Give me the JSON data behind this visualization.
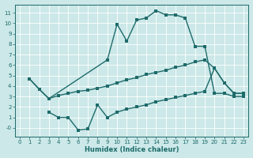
{
  "xlabel": "Humidex (Indice chaleur)",
  "bg_color": "#cce8e8",
  "line_color": "#1e6b6b",
  "grid_color": "#ffffff",
  "xlim": [
    -0.5,
    23.5
  ],
  "ylim": [
    -0.8,
    11.8
  ],
  "xticks": [
    0,
    1,
    2,
    3,
    4,
    5,
    6,
    7,
    8,
    9,
    10,
    11,
    12,
    13,
    14,
    15,
    16,
    17,
    18,
    19,
    20,
    21,
    22,
    23
  ],
  "yticks": [
    0,
    1,
    2,
    3,
    4,
    5,
    6,
    7,
    8,
    9,
    10,
    11
  ],
  "ytick_labels": [
    "-0",
    "1",
    "2",
    "3",
    "4",
    "5",
    "6",
    "7",
    "8",
    "9",
    "10",
    "11"
  ],
  "line1_x": [
    1,
    2,
    3,
    4,
    5,
    6,
    7,
    8,
    9,
    10,
    11,
    12,
    13,
    14,
    15,
    16,
    17,
    18,
    19,
    20,
    21,
    22,
    23
  ],
  "line1_y": [
    4.7,
    3.7,
    2.8,
    3.1,
    3.3,
    3.5,
    3.6,
    3.8,
    4.0,
    4.3,
    4.6,
    4.8,
    5.1,
    5.3,
    5.5,
    5.8,
    6.0,
    6.3,
    6.5,
    5.7,
    4.3,
    3.3,
    3.3
  ],
  "line2_x": [
    1,
    2,
    3,
    9,
    10,
    11,
    12,
    13,
    14,
    15,
    16,
    17,
    18,
    19,
    20,
    21,
    22,
    23
  ],
  "line2_y": [
    4.7,
    3.7,
    2.8,
    6.5,
    9.9,
    8.3,
    10.3,
    10.5,
    11.2,
    10.8,
    10.8,
    10.5,
    7.8,
    7.8,
    3.3,
    3.3,
    3.0,
    3.0
  ],
  "line3_x": [
    3,
    4,
    5,
    6,
    7,
    8,
    9,
    10,
    11,
    12,
    13,
    14,
    15,
    16,
    17,
    18,
    19,
    20,
    21,
    22,
    23
  ],
  "line3_y": [
    1.5,
    1.0,
    1.0,
    -0.2,
    -0.1,
    2.2,
    1.0,
    1.5,
    1.8,
    2.0,
    2.2,
    2.5,
    2.7,
    2.9,
    3.1,
    3.3,
    3.5,
    5.7,
    4.3,
    3.3,
    3.3
  ]
}
